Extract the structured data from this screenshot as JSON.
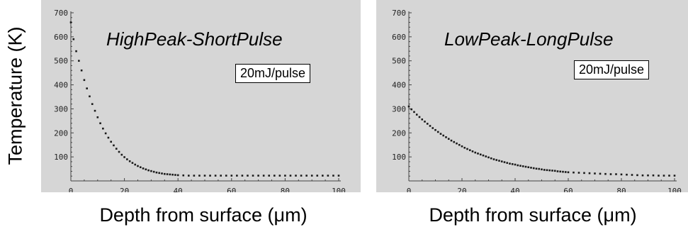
{
  "figure": {
    "ylabel": "Temperature (K)",
    "xlabel": "Depth from surface (μm)"
  },
  "chart_data": [
    {
      "type": "scatter",
      "title": "HighPeak-ShortPulse",
      "annotation": "20mJ/pulse",
      "xlabel": "Depth from surface (μm)",
      "ylabel": "Temperature (K)",
      "xlim": [
        0,
        100
      ],
      "ylim": [
        0,
        700
      ],
      "xticks": [
        0,
        20,
        40,
        60,
        80,
        100
      ],
      "yticks": [
        100,
        200,
        300,
        400,
        500,
        600,
        700
      ],
      "grid": false,
      "series": [
        {
          "x": [
            0,
            1,
            2,
            3,
            4,
            5,
            6,
            7,
            8,
            9,
            10,
            11,
            12,
            13,
            14,
            15,
            16,
            17,
            18,
            19,
            20,
            21,
            22,
            23,
            24,
            25,
            26,
            27,
            28,
            29,
            30,
            31,
            32,
            33,
            34,
            35,
            36,
            37,
            38,
            39,
            40,
            42,
            44,
            46,
            48,
            50,
            52,
            54,
            56,
            58,
            60,
            62,
            64,
            66,
            68,
            70,
            72,
            74,
            76,
            78,
            80,
            82,
            84,
            86,
            88,
            90,
            92,
            94,
            96,
            98,
            100
          ],
          "values": [
            660,
            590,
            540,
            500,
            460,
            420,
            385,
            352,
            320,
            292,
            265,
            240,
            218,
            198,
            180,
            163,
            148,
            134,
            121,
            109,
            99,
            90,
            82,
            75,
            68,
            62,
            57,
            52,
            48,
            44,
            41,
            38,
            35,
            33,
            31,
            29,
            28,
            27,
            26,
            25,
            24,
            23,
            22,
            22,
            22,
            22,
            22,
            22,
            22,
            22,
            22,
            22,
            22,
            22,
            22,
            22,
            22,
            22,
            22,
            22,
            22,
            22,
            22,
            22,
            22,
            22,
            22,
            22,
            22,
            22,
            22
          ]
        }
      ]
    },
    {
      "type": "scatter",
      "title": "LowPeak-LongPulse",
      "annotation": "20mJ/pulse",
      "xlabel": "Depth from surface (μm)",
      "ylabel": "Temperature (K)",
      "xlim": [
        0,
        100
      ],
      "ylim": [
        0,
        700
      ],
      "xticks": [
        0,
        20,
        40,
        60,
        80,
        100
      ],
      "yticks": [
        100,
        200,
        300,
        400,
        500,
        600,
        700
      ],
      "grid": false,
      "series": [
        {
          "x": [
            0,
            1,
            2,
            3,
            4,
            5,
            6,
            7,
            8,
            9,
            10,
            11,
            12,
            13,
            14,
            15,
            16,
            17,
            18,
            19,
            20,
            21,
            22,
            23,
            24,
            25,
            26,
            27,
            28,
            29,
            30,
            31,
            32,
            33,
            34,
            35,
            36,
            37,
            38,
            39,
            40,
            41,
            42,
            43,
            44,
            45,
            46,
            47,
            48,
            49,
            50,
            51,
            52,
            53,
            54,
            55,
            56,
            57,
            58,
            59,
            60,
            62,
            64,
            66,
            68,
            70,
            72,
            74,
            76,
            78,
            80,
            82,
            84,
            86,
            88,
            90,
            92,
            94,
            96,
            98,
            100
          ],
          "values": [
            310,
            298,
            287,
            276,
            266,
            256,
            247,
            238,
            229,
            220,
            212,
            204,
            196,
            189,
            182,
            175,
            168,
            162,
            156,
            150,
            144,
            138,
            133,
            128,
            123,
            118,
            114,
            110,
            106,
            102,
            98,
            94,
            90,
            87,
            84,
            81,
            78,
            75,
            72,
            70,
            68,
            65,
            63,
            61,
            59,
            57,
            55,
            53,
            51,
            50,
            48,
            46,
            45,
            44,
            43,
            42,
            40,
            39,
            38,
            37,
            36,
            35,
            34,
            33,
            32,
            31,
            30,
            29,
            28,
            28,
            27,
            26,
            25,
            24,
            23,
            23,
            23,
            22,
            22,
            22,
            22
          ]
        }
      ]
    }
  ]
}
